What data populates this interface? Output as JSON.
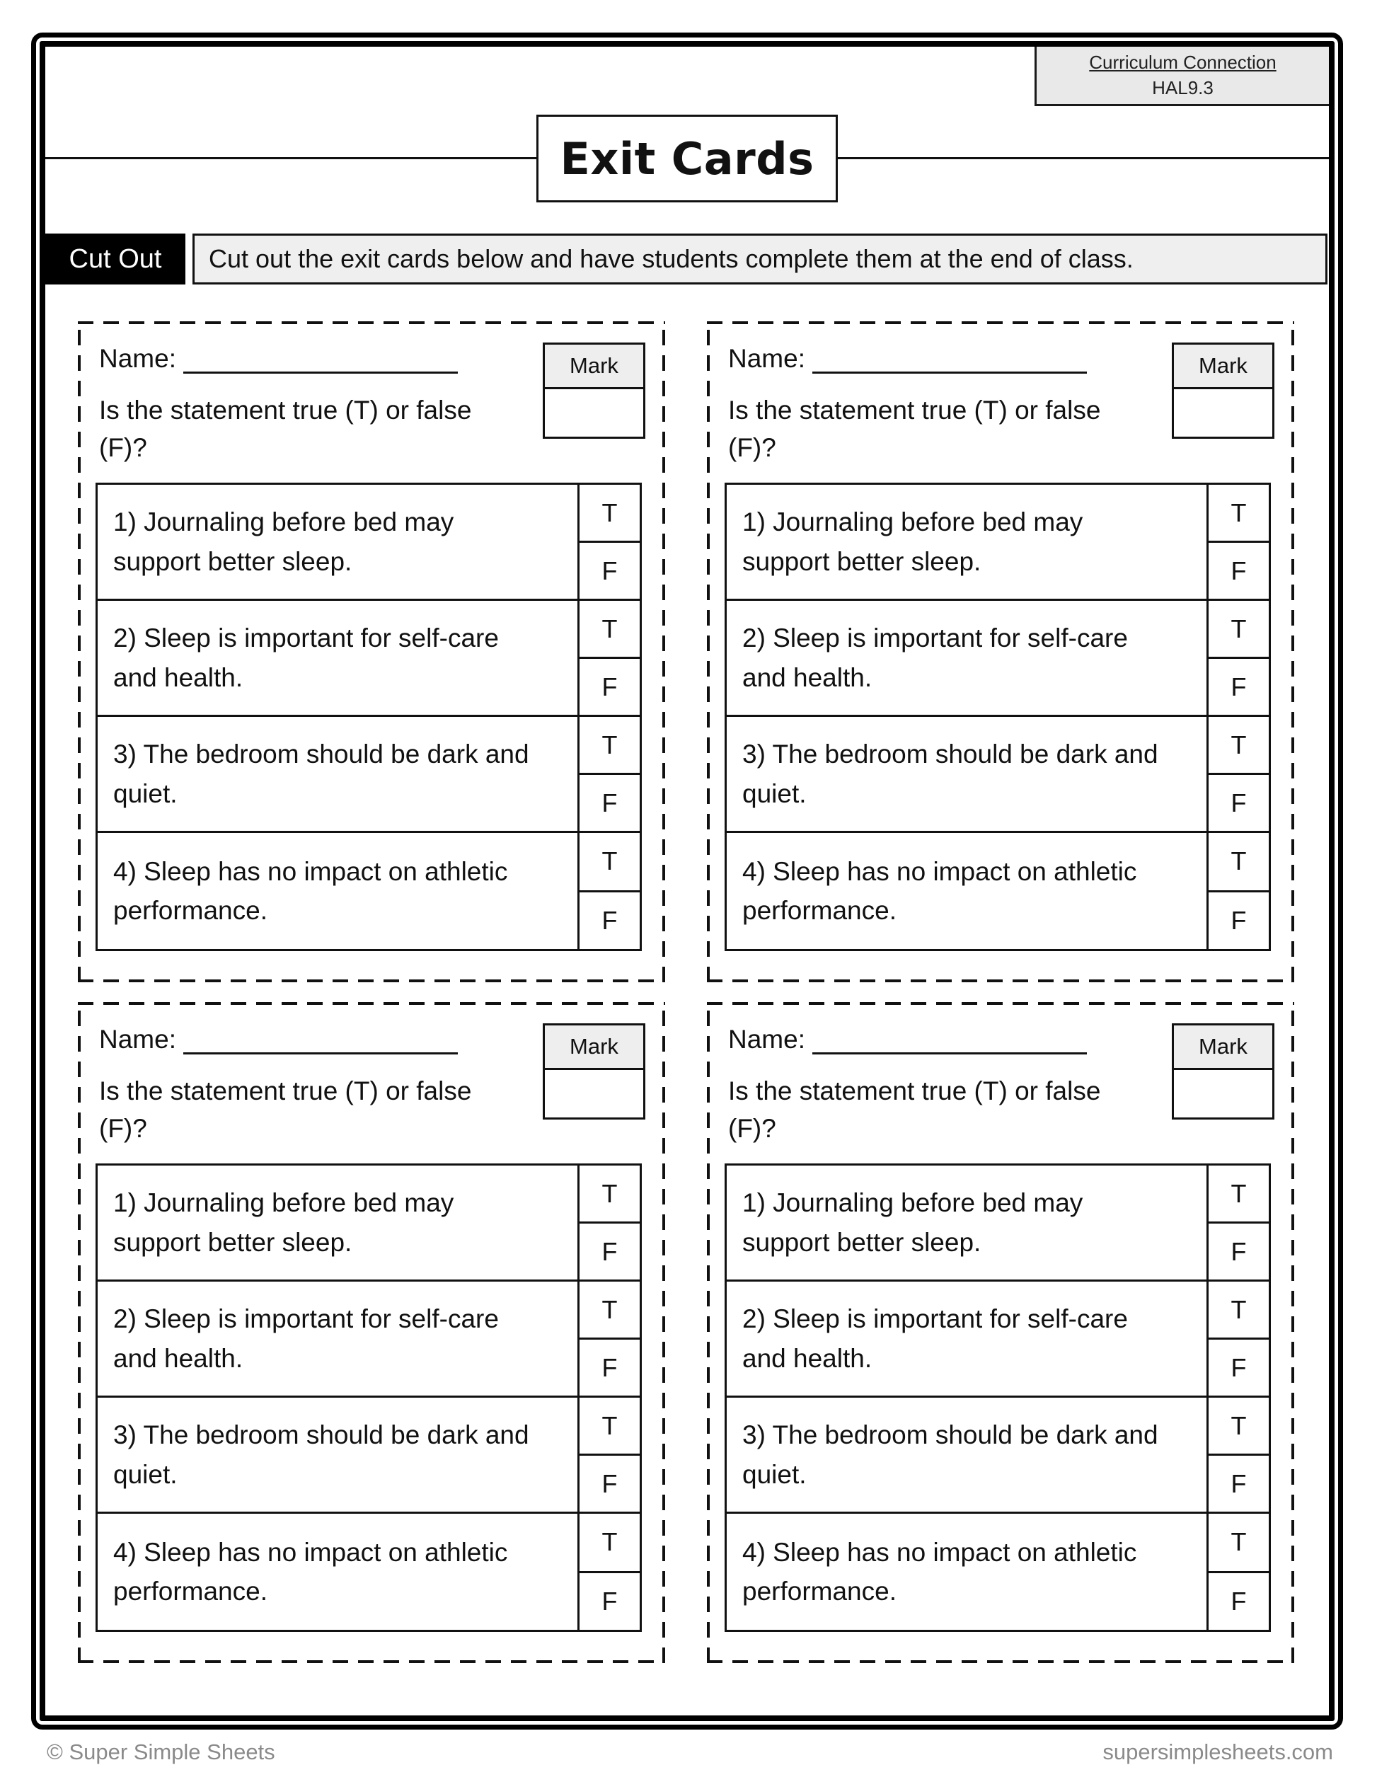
{
  "page": {
    "curriculum": {
      "label": "Curriculum Connection",
      "code": "HAL9.3"
    },
    "title": "Exit Cards",
    "cut_out": {
      "label": "Cut Out",
      "instruction": "Cut out the exit cards below and have students complete them at the end of class."
    },
    "footer": {
      "copyright": "© Super Simple Sheets",
      "website": "supersimplesheets.com"
    }
  },
  "card": {
    "name_label": "Name:",
    "mark_label": "Mark",
    "prompt": "Is the statement true (T) or false (F)?",
    "true_label": "T",
    "false_label": "F",
    "statements": [
      "1) Journaling before bed may support better sleep.",
      "2) Sleep is important for self-care and health.",
      "3) The bedroom should be dark and quiet.",
      "4) Sleep has no impact on athletic performance."
    ]
  },
  "colors": {
    "border": "#000000",
    "panel_gray": "#efefef",
    "mark_header_gray": "#eeeeee",
    "footer_text": "#8a8a8a"
  }
}
